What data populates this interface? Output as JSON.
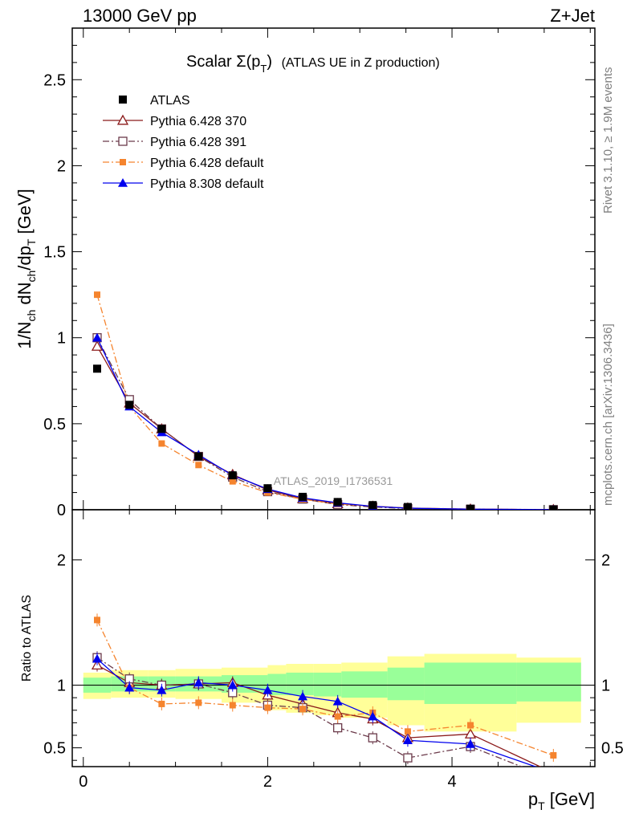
{
  "header": {
    "left": "13000 GeV pp",
    "right": "Z+Jet"
  },
  "title": {
    "main": "Scalar Σ(p",
    "sub": "T",
    "close": ")",
    "suffix": "(ATLAS UE in Z production)"
  },
  "side_labels": {
    "rivet": "Rivet 3.1.10, ≥ 1.9M events",
    "mcplots": "mcplots.cern.ch [arXiv:1306.3436]"
  },
  "watermark": "ATLAS_2019_I1736531",
  "axes": {
    "ylabel_main": "1/N_ch dN_ch/dp_T [GeV]",
    "ylabel_ratio": "Ratio to ATLAS",
    "xlabel": "p_T [GeV]"
  },
  "legend": [
    "ATLAS",
    "Pythia 6.428 370",
    "Pythia 6.428 391",
    "Pythia 6.428 default",
    "Pythia 8.308 default"
  ],
  "colors": {
    "data": "#000000",
    "p6_370": "#8b1a1a",
    "p6_391": "#6b3a4a",
    "p6_default": "#f5842e",
    "p8_default": "#0000ee",
    "band_inner": "#99ff99",
    "band_outer": "#ffff99"
  },
  "chart_data": {
    "type": "line",
    "x": [
      0.15,
      0.5,
      0.85,
      1.25,
      1.62,
      2.0,
      2.38,
      2.76,
      3.14,
      3.52,
      4.2,
      5.1
    ],
    "xlim": [
      -0.12,
      5.55
    ],
    "xticks": [
      0,
      2,
      4
    ],
    "main_panel": {
      "ylim": [
        0,
        2.8
      ],
      "yticks": [
        0,
        0.5,
        1,
        1.5,
        2,
        2.5
      ],
      "data": {
        "name": "ATLAS",
        "y": [
          0.82,
          0.61,
          0.47,
          0.31,
          0.2,
          0.125,
          0.075,
          0.045,
          0.027,
          0.016,
          0.006,
          0.002
        ]
      },
      "series": [
        {
          "name": "Pythia 6.428 370",
          "y": [
            0.95,
            0.62,
            0.47,
            0.31,
            0.205,
            0.115,
            0.064,
            0.035,
            0.02,
            0.01,
            0.0036,
            0.0007
          ],
          "marker": "triangle-open",
          "dash": "solid"
        },
        {
          "name": "Pythia 6.428 391",
          "y": [
            1.0,
            0.64,
            0.47,
            0.31,
            0.19,
            0.105,
            0.062,
            0.03,
            0.016,
            0.007,
            0.003,
            0.0005
          ],
          "marker": "square-open",
          "dash": "dashdot"
        },
        {
          "name": "Pythia 6.428 default",
          "y": [
            1.25,
            0.6,
            0.385,
            0.26,
            0.165,
            0.1,
            0.061,
            0.033,
            0.021,
            0.01,
            0.0041,
            0.0009
          ],
          "marker": "square-filled",
          "dash": "dashdot"
        },
        {
          "name": "Pythia 8.308 default",
          "y": [
            1.0,
            0.6,
            0.45,
            0.32,
            0.2,
            0.12,
            0.069,
            0.04,
            0.02,
            0.009,
            0.0032,
            0.0006
          ],
          "marker": "triangle-filled",
          "dash": "solid"
        }
      ]
    },
    "ratio_panel": {
      "ylim": [
        0.35,
        2.4
      ],
      "yticks": [
        0.5,
        1,
        2
      ],
      "bands": {
        "edges": [
          0,
          0.3,
          0.7,
          1.0,
          1.5,
          2.0,
          2.2,
          2.5,
          2.8,
          3.3,
          3.7,
          4.7,
          5.4
        ],
        "inner": [
          [
            0.94,
            1.06
          ],
          [
            0.95,
            1.07
          ],
          [
            0.95,
            1.07
          ],
          [
            0.95,
            1.07
          ],
          [
            0.94,
            1.08
          ],
          [
            0.92,
            1.09
          ],
          [
            0.92,
            1.1
          ],
          [
            0.91,
            1.1
          ],
          [
            0.9,
            1.11
          ],
          [
            0.88,
            1.14
          ],
          [
            0.85,
            1.18
          ],
          [
            0.87,
            1.18
          ]
        ],
        "outer": [
          [
            0.89,
            1.1
          ],
          [
            0.9,
            1.12
          ],
          [
            0.9,
            1.12
          ],
          [
            0.89,
            1.13
          ],
          [
            0.86,
            1.14
          ],
          [
            0.8,
            1.16
          ],
          [
            0.78,
            1.17
          ],
          [
            0.76,
            1.17
          ],
          [
            0.74,
            1.18
          ],
          [
            0.68,
            1.23
          ],
          [
            0.63,
            1.25
          ],
          [
            0.7,
            1.22
          ]
        ]
      },
      "series": [
        {
          "name": "Pythia 6.428 370",
          "y": [
            1.16,
            1.02,
            1.0,
            1.01,
            1.02,
            0.92,
            0.85,
            0.78,
            0.73,
            0.58,
            0.61,
            0.3
          ]
        },
        {
          "name": "Pythia 6.428 391",
          "y": [
            1.22,
            1.05,
            1.0,
            1.01,
            0.94,
            0.84,
            0.82,
            0.66,
            0.58,
            0.42,
            0.51,
            0.25
          ]
        },
        {
          "name": "Pythia 6.428 default",
          "y": [
            1.52,
            0.98,
            0.85,
            0.86,
            0.84,
            0.82,
            0.81,
            0.75,
            0.78,
            0.63,
            0.68,
            0.44
          ]
        },
        {
          "name": "Pythia 8.308 default",
          "y": [
            1.21,
            0.98,
            0.96,
            1.02,
            1.0,
            0.96,
            0.91,
            0.87,
            0.75,
            0.56,
            0.53,
            0.3
          ]
        }
      ]
    }
  }
}
